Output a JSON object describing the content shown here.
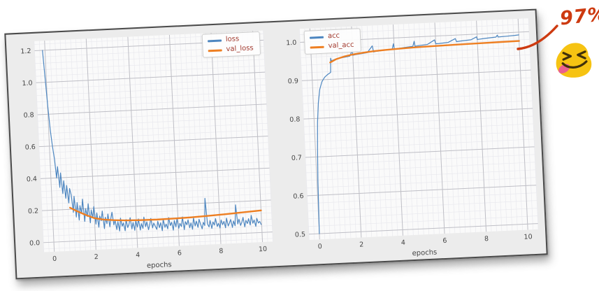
{
  "figure": {
    "background": "#ececec",
    "border_color": "#4a4a4a",
    "rotation_deg": -2.65,
    "legend_text_color": "#a23a2e"
  },
  "annotation": {
    "text": "97%",
    "color": "#cd3a10",
    "arrow_icon": "curved-arrow",
    "emoji_icon": "squinting-face-with-tongue",
    "emoji_colors": {
      "body": "#f6c312",
      "features": "#40300b",
      "tongue": "#ea5f8f"
    }
  },
  "chart_data": [
    {
      "type": "line",
      "title": "",
      "xlabel": "epochs",
      "ylabel": "",
      "xlim": [
        -0.5,
        10.5
      ],
      "ylim": [
        -0.06,
        1.26
      ],
      "xticks": [
        0,
        2,
        4,
        6,
        8,
        10
      ],
      "xtick_labels": [
        "0",
        "2",
        "4",
        "6",
        "8",
        "10"
      ],
      "yticks": [
        0.0,
        0.2,
        0.4,
        0.6,
        0.8,
        1.0,
        1.2
      ],
      "ytick_labels": [
        "0.0",
        "0.2",
        "0.4",
        "0.6",
        "0.8",
        "1.0",
        "1.2"
      ],
      "x_minor_step": 0.25,
      "y_minor_step": 0.04,
      "grid": true,
      "legend_position": "top-right",
      "plot_bg": "#fafafa",
      "grid_major_color": "#bfbfc6",
      "grid_minor_color": "#e9e9ee",
      "series": [
        {
          "name": "loss",
          "color": "#4d86c0",
          "width": 1.2,
          "x0": -0.12,
          "dx": 0.066,
          "y": [
            1.2,
            1.02,
            0.84,
            0.7,
            0.6,
            0.52,
            0.4,
            0.47,
            0.34,
            0.43,
            0.3,
            0.38,
            0.27,
            0.35,
            0.24,
            0.33,
            0.29,
            0.18,
            0.28,
            0.15,
            0.24,
            0.13,
            0.22,
            0.17,
            0.26,
            0.12,
            0.2,
            0.15,
            0.23,
            0.11,
            0.19,
            0.14,
            0.21,
            0.1,
            0.17,
            0.08,
            0.15,
            0.12,
            0.18,
            0.07,
            0.14,
            0.1,
            0.16,
            0.08,
            0.13,
            0.17,
            0.09,
            0.12,
            0.06,
            0.11,
            0.05,
            0.13,
            0.08,
            0.1,
            0.05,
            0.12,
            0.07,
            0.09,
            0.13,
            0.06,
            0.1,
            0.05,
            0.11,
            0.07,
            0.12,
            0.05,
            0.09,
            0.06,
            0.13,
            0.07,
            0.1,
            0.05,
            0.08,
            0.12,
            0.06,
            0.09,
            0.07,
            0.05,
            0.1,
            0.06,
            0.09,
            0.04,
            0.11,
            0.06,
            0.08,
            0.05,
            0.12,
            0.07,
            0.09,
            0.04,
            0.1,
            0.06,
            0.11,
            0.05,
            0.08,
            0.06,
            0.12,
            0.04,
            0.09,
            0.07,
            0.1,
            0.05,
            0.08,
            0.04,
            0.11,
            0.06,
            0.09,
            0.05,
            0.1,
            0.07,
            0.04,
            0.08,
            0.06,
            0.23,
            0.07,
            0.05,
            0.09,
            0.04,
            0.08,
            0.06,
            0.1,
            0.05,
            0.07,
            0.04,
            0.09,
            0.06,
            0.08,
            0.04,
            0.1,
            0.05,
            0.07,
            0.09,
            0.04,
            0.08,
            0.05,
            0.18,
            0.06,
            0.09,
            0.05,
            0.07,
            0.1,
            0.04,
            0.08,
            0.06,
            0.09,
            0.05,
            0.11,
            0.06,
            0.08,
            0.04,
            0.09,
            0.06,
            0.07,
            0.05
          ]
        },
        {
          "name": "val_loss",
          "color": "#ee7f22",
          "width": 2.4,
          "x": [
            0.85,
            1.2,
            1.6,
            2.0,
            2.4,
            2.9,
            3.5,
            4.2,
            5.0,
            5.8,
            6.6,
            7.4,
            8.2,
            9.0,
            10.0
          ],
          "y": [
            0.21,
            0.185,
            0.16,
            0.138,
            0.127,
            0.12,
            0.115,
            0.112,
            0.111,
            0.112,
            0.115,
            0.119,
            0.124,
            0.13,
            0.138
          ]
        }
      ]
    },
    {
      "type": "line",
      "title": "",
      "xlabel": "epochs",
      "ylabel": "",
      "xlim": [
        -0.5,
        10.5
      ],
      "ylim": [
        0.485,
        1.035
      ],
      "xticks": [
        0,
        2,
        4,
        6,
        8,
        10
      ],
      "xtick_labels": [
        "0",
        "2",
        "4",
        "6",
        "8",
        "10"
      ],
      "yticks": [
        0.5,
        0.6,
        0.7,
        0.8,
        0.9,
        1.0
      ],
      "ytick_labels": [
        "0.5",
        "0.6",
        "0.7",
        "0.8",
        "0.9",
        "1.0"
      ],
      "x_minor_step": 0.25,
      "y_minor_step": 0.02,
      "grid": true,
      "legend_position": "top-left",
      "plot_bg": "#fafafa",
      "grid_major_color": "#bfbfc6",
      "grid_minor_color": "#e9e9ee",
      "series": [
        {
          "name": "acc",
          "color": "#4d86c0",
          "width": 1.2,
          "x": [
            0,
            0.05,
            0.1,
            0.16,
            0.24,
            0.34,
            0.46,
            0.6,
            0.75,
            0.9,
            0.93,
            0.96,
            1.1,
            1.35,
            1.6,
            1.85,
            1.97,
            2.0,
            2.1,
            2.4,
            2.7,
            2.95,
            3.0,
            3.1,
            3.5,
            3.9,
            3.97,
            4.0,
            4.15,
            4.5,
            4.9,
            4.97,
            5.0,
            5.2,
            5.6,
            5.95,
            6.0,
            6.15,
            6.6,
            6.95,
            7.0,
            7.2,
            7.7,
            7.97,
            8.0,
            8.4,
            8.9,
            8.97,
            9.0,
            9.4,
            9.8,
            10.0
          ],
          "y": [
            0.5,
            0.64,
            0.72,
            0.79,
            0.84,
            0.875,
            0.895,
            0.906,
            0.913,
            0.918,
            0.955,
            0.948,
            0.951,
            0.954,
            0.956,
            0.958,
            0.972,
            0.96,
            0.961,
            0.963,
            0.965,
            0.982,
            0.966,
            0.967,
            0.969,
            0.971,
            0.985,
            0.972,
            0.972,
            0.974,
            0.976,
            0.989,
            0.976,
            0.977,
            0.979,
            0.99,
            0.98,
            0.98,
            0.982,
            0.991,
            0.983,
            0.984,
            0.986,
            0.993,
            0.986,
            0.988,
            0.99,
            0.995,
            0.99,
            0.991,
            0.992,
            0.993
          ]
        },
        {
          "name": "val_acc",
          "color": "#ee7f22",
          "width": 2.4,
          "x": [
            0.9,
            1.2,
            1.6,
            2.0,
            2.5,
            3.0,
            3.6,
            4.2,
            5.0,
            5.8,
            6.6,
            7.4,
            8.2,
            9.0,
            10.0
          ],
          "y": [
            0.944,
            0.952,
            0.958,
            0.962,
            0.9655,
            0.968,
            0.97,
            0.9715,
            0.973,
            0.974,
            0.9748,
            0.9755,
            0.976,
            0.9765,
            0.977
          ]
        }
      ]
    }
  ]
}
